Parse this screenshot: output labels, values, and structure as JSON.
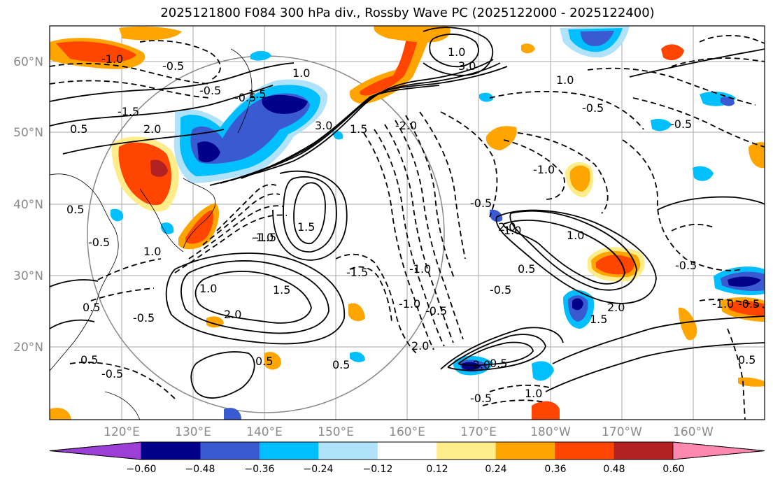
{
  "title": "2025121800 F084 300 hPa div., Rossby Wave PC (2025122000 - 2025122400)",
  "lat_labels": [
    "60°N",
    "50°N",
    "40°N",
    "30°N",
    "20°N"
  ],
  "lon_labels": [
    "120°E",
    "130°E",
    "140°E",
    "150°E",
    "160°E",
    "170°E",
    "180°W",
    "170°W",
    "160°W"
  ],
  "contour_labels": [
    "-1.0",
    "-0.5",
    "-0.5",
    "1.0",
    "3.0",
    "3.0",
    "1.5",
    "2.0",
    "-1.5",
    "0.5",
    "-0.5",
    "1.5",
    "1.0",
    "-2.0",
    "-1.0",
    "-0.5",
    "0.5",
    "1.5",
    "2.0",
    "1.0",
    "-1.0",
    "-0.5",
    "1.5",
    "0.5",
    "-0.5",
    "0.5",
    "0.5",
    "-0.5",
    "1.0",
    "-0.5",
    "-1.0",
    "-0.5",
    "1.0",
    "-1.5",
    "-1.5",
    "1.0",
    "-1.0",
    "-0.5",
    "2.0",
    "0.5",
    "1.5",
    "2.0",
    "0.5",
    "-2.0",
    "1.0",
    "0.5",
    "-0.5",
    "-1.0",
    "-0.5",
    "0.5",
    "-0.5",
    "1.0",
    "-0.5",
    "2.0"
  ],
  "colorbar": {
    "ticks": [
      "−0.60",
      "−0.48",
      "−0.36",
      "−0.24",
      "−0.12",
      "0.12",
      "0.24",
      "0.36",
      "0.48",
      "0.60"
    ],
    "colors": [
      "#9b3fd6",
      "#00008b",
      "#3a5ad1",
      "#00bfff",
      "#b0e2fa",
      "#ffffff",
      "#ffec8b",
      "#ffa500",
      "#ff4500",
      "#b22222",
      "#ff88b0"
    ]
  },
  "shading_colors": {
    "neg_light": "#b0e2fa",
    "neg_mid": "#00bfff",
    "neg_strong": "#3a5ad1",
    "neg_max": "#00008b",
    "pos_light": "#ffec8b",
    "pos_mid": "#ffa500",
    "pos_strong": "#ff4500",
    "pos_max": "#b22222"
  }
}
